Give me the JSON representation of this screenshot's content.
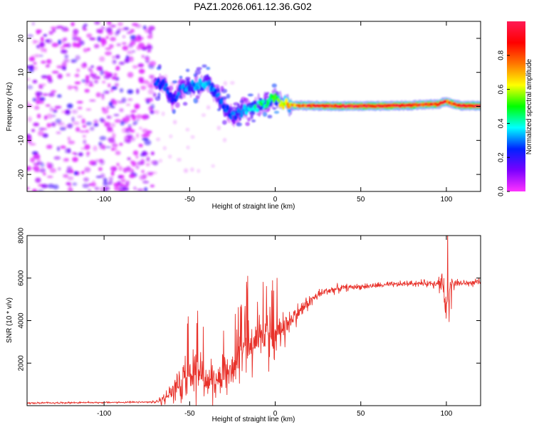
{
  "figure": {
    "title": "PAZ1.2026.061.12.36.G02"
  },
  "colors": {
    "snr_line": "#e8312a",
    "axis": "#000000",
    "background": "#ffffff"
  },
  "chart_data": [
    {
      "type": "heatmap",
      "title": "PAZ1.2026.061.12.36.G02",
      "xlabel": "Height of straight line (km)",
      "ylabel": "Frequency (Hz)",
      "xlim": [
        -145,
        120
      ],
      "ylim": [
        -25,
        25
      ],
      "xticks": [
        -100,
        -50,
        0,
        50,
        100
      ],
      "yticks": [
        -20,
        -10,
        0,
        10,
        20
      ],
      "colorbar": {
        "label": "Normalized spectral amplitude",
        "range": [
          0,
          1
        ],
        "ticks": [
          0.0,
          0.2,
          0.4,
          0.6,
          0.8
        ],
        "colormap": [
          "#ff33ff",
          "#7a00ff",
          "#0022ff",
          "#00ffff",
          "#00ff00",
          "#ffff00",
          "#ff7700",
          "#ff0000",
          "#ff1a55"
        ]
      },
      "noise_region": {
        "x_range": [
          -145,
          -70
        ],
        "freq_range": [
          -25,
          25
        ],
        "amplitude": [
          0.03,
          0.2
        ]
      },
      "ridge": {
        "x": [
          -70,
          -65,
          -60,
          -55,
          -50,
          -45,
          -40,
          -35,
          -30,
          -25,
          -22,
          -20,
          -15,
          -10,
          -5,
          -2,
          0,
          2,
          5,
          10,
          20,
          40,
          60,
          80,
          90,
          95,
          100,
          105,
          110,
          120
        ],
        "frequency": [
          7,
          6.5,
          2,
          5,
          6,
          6.5,
          7,
          4,
          0,
          -3,
          -2,
          -1.5,
          -0.5,
          0,
          1,
          2.5,
          3,
          1.5,
          0.8,
          0.3,
          0.2,
          0.1,
          0.1,
          0.3,
          0.6,
          0.6,
          1.5,
          0.5,
          0.2,
          0.2
        ],
        "amplitude": [
          0.25,
          0.3,
          0.2,
          0.3,
          0.3,
          0.35,
          0.35,
          0.3,
          0.25,
          0.28,
          0.3,
          0.33,
          0.35,
          0.4,
          0.45,
          0.45,
          0.5,
          0.55,
          0.6,
          0.7,
          0.85,
          0.9,
          0.92,
          0.9,
          0.85,
          0.85,
          0.8,
          0.85,
          0.9,
          0.92
        ]
      }
    },
    {
      "type": "line",
      "xlabel": "Height of straight line (km)",
      "ylabel": "SNR (10 * v/v)",
      "xlim": [
        -145,
        120
      ],
      "ylim": [
        0,
        8000
      ],
      "xticks": [
        -100,
        -50,
        0,
        50,
        100
      ],
      "yticks": [
        2000,
        4000,
        6000,
        8000
      ],
      "series": [
        {
          "name": "SNR",
          "x": [
            -145,
            -120,
            -100,
            -80,
            -70,
            -65,
            -60,
            -55,
            -50,
            -45,
            -40,
            -35,
            -30,
            -25,
            -20,
            -15,
            -10,
            -5,
            0,
            5,
            10,
            15,
            20,
            25,
            30,
            40,
            50,
            60,
            70,
            80,
            90,
            95,
            98,
            100,
            102,
            105,
            110,
            120
          ],
          "y": [
            120,
            140,
            150,
            160,
            170,
            300,
            700,
            1200,
            1800,
            1500,
            1300,
            1200,
            1600,
            2100,
            2500,
            2900,
            3200,
            3300,
            3400,
            3700,
            4100,
            4500,
            4900,
            5200,
            5400,
            5550,
            5600,
            5650,
            5700,
            5750,
            5750,
            5800,
            5700,
            4700,
            5500,
            5800,
            5750,
            5800
          ],
          "noise_amplitude": [
            40,
            40,
            40,
            40,
            50,
            250,
            450,
            650,
            900,
            1000,
            900,
            800,
            900,
            1100,
            1200,
            1200,
            1100,
            1000,
            900,
            700,
            500,
            400,
            300,
            250,
            200,
            150,
            120,
            120,
            130,
            130,
            150,
            250,
            800,
            1400,
            800,
            200,
            150,
            150
          ]
        }
      ]
    }
  ]
}
